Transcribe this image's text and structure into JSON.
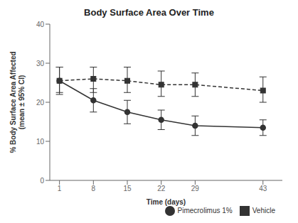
{
  "chart_data": {
    "type": "line",
    "title": "Body Surface Area Over Time",
    "x_label": "Time (days)",
    "y_label": "% Body Surface Area Affected\n(mean ± 95% CI)",
    "x": [
      1,
      8,
      15,
      22,
      29,
      43
    ],
    "series": [
      {
        "name": "Pimecrolimus 1%",
        "color": "#333333",
        "marker": "circle",
        "line_style": "solid",
        "values": [
          25.5,
          20.5,
          17.5,
          15.5,
          14.0,
          13.5
        ],
        "error_upper": [
          3.5,
          3.0,
          3.0,
          2.5,
          2.5,
          2.0
        ],
        "error_lower": [
          3.5,
          3.0,
          3.0,
          2.5,
          2.5,
          2.0
        ]
      },
      {
        "name": "Vehicle",
        "color": "#333333",
        "marker": "square",
        "line_style": "dashed",
        "values": [
          25.5,
          26.0,
          25.5,
          24.5,
          24.5,
          23.0
        ],
        "error_upper": [
          3.5,
          3.0,
          3.5,
          3.5,
          3.0,
          3.5
        ],
        "error_lower": [
          3.0,
          3.5,
          3.0,
          3.0,
          3.0,
          3.0
        ]
      }
    ],
    "xlim": [
      -1,
      47
    ],
    "xticks": [
      1,
      8,
      15,
      22,
      29,
      43
    ],
    "ylim": [
      0,
      40
    ],
    "yticks": [
      0,
      10,
      20,
      30,
      40
    ],
    "grid": false,
    "legend": "lower right"
  }
}
